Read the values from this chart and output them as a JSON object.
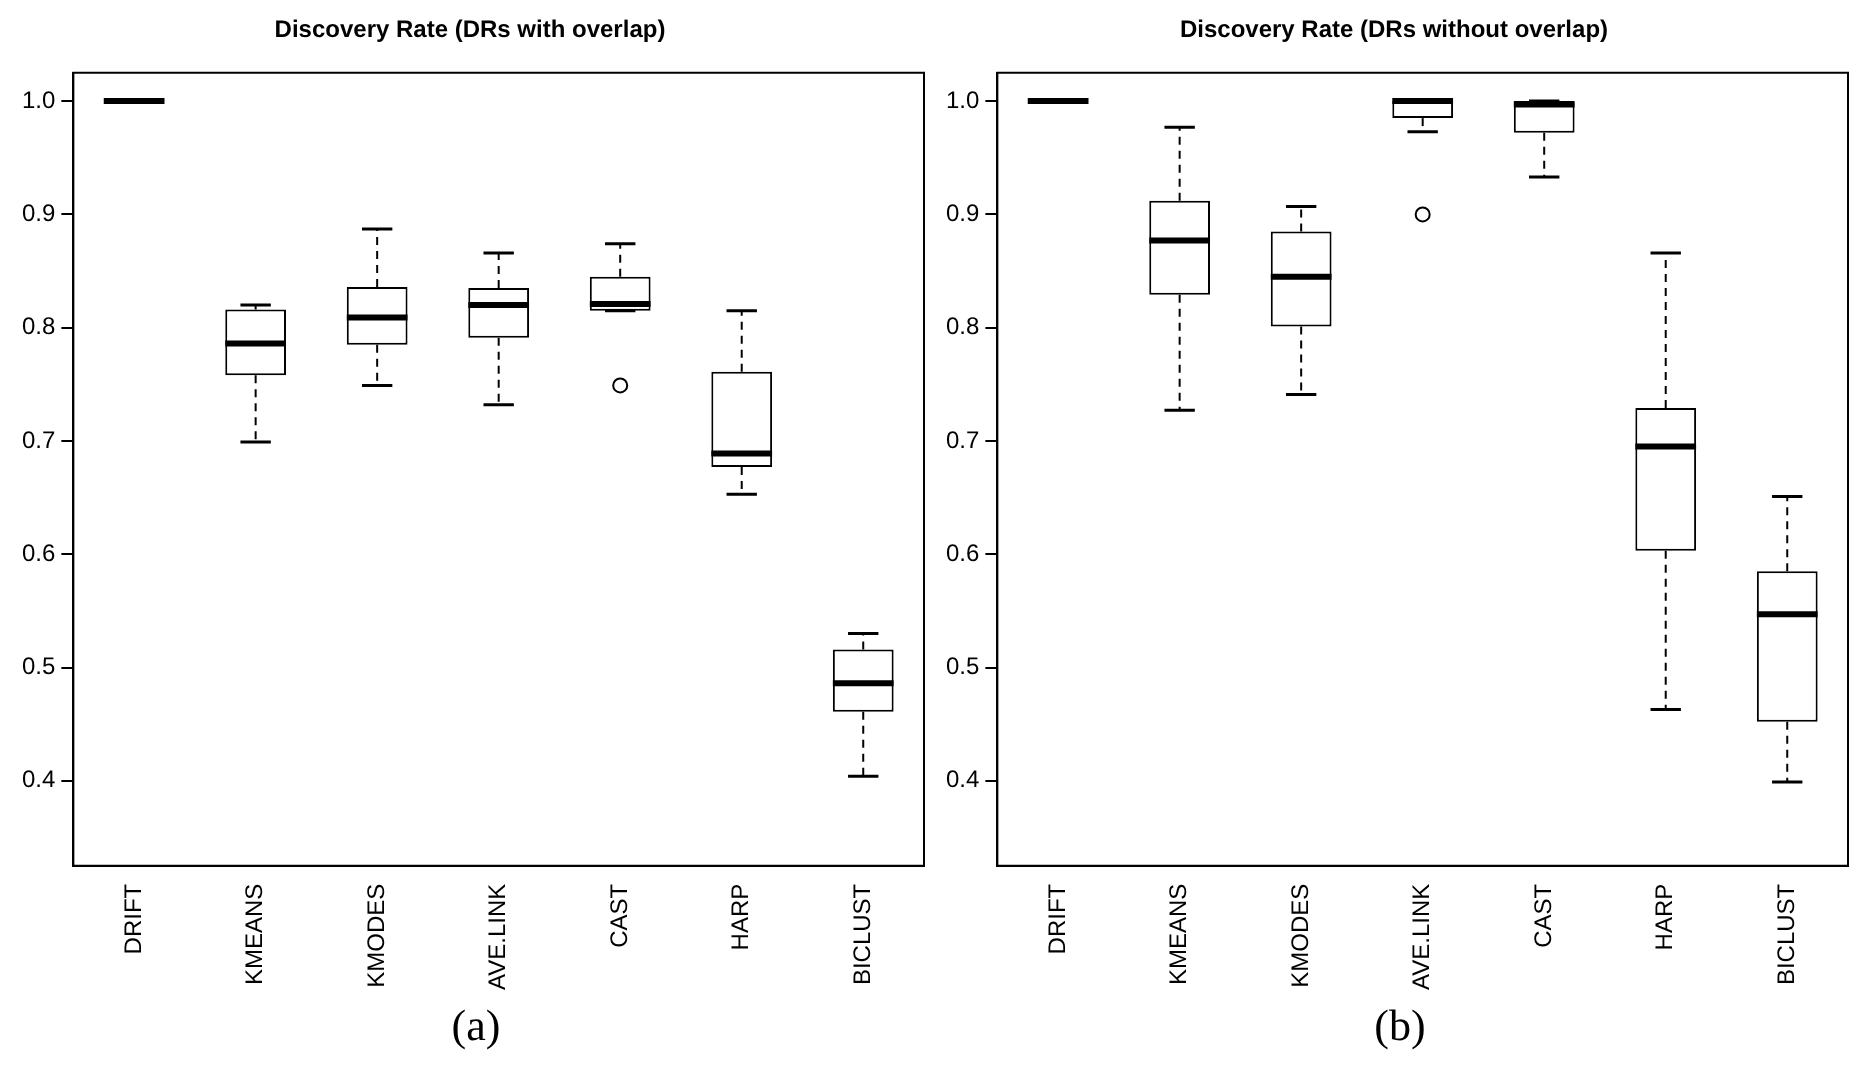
{
  "chart_data": [
    {
      "type": "box",
      "title": "Discovery Rate (DRs with overlap)",
      "categories": [
        "DRIFT",
        "KMEANS",
        "KMODES",
        "AVE.LINK",
        "CAST",
        "HARP",
        "BICLUST"
      ],
      "boxes": [
        {
          "low": 1.0,
          "q1": 1.0,
          "median": 1.0,
          "q3": 1.0,
          "high": 1.0
        },
        {
          "low": 0.699,
          "q1": 0.758,
          "median": 0.786,
          "q3": 0.816,
          "high": 0.82
        },
        {
          "low": 0.749,
          "q1": 0.785,
          "median": 0.809,
          "q3": 0.836,
          "high": 0.887
        },
        {
          "low": 0.732,
          "q1": 0.791,
          "median": 0.82,
          "q3": 0.835,
          "high": 0.866
        },
        {
          "low": 0.815,
          "q1": 0.815,
          "median": 0.821,
          "q3": 0.845,
          "high": 0.874,
          "outliers": [
            0.749
          ]
        },
        {
          "low": 0.653,
          "q1": 0.677,
          "median": 0.689,
          "q3": 0.761,
          "high": 0.815
        },
        {
          "low": 0.404,
          "q1": 0.461,
          "median": 0.486,
          "q3": 0.516,
          "high": 0.53
        }
      ],
      "ylim": [
        0.325,
        1.025
      ],
      "yticks": [
        0.4,
        0.5,
        0.6,
        0.7,
        0.8,
        0.9,
        {
          "value": 1,
          "label": "1.0"
        }
      ],
      "annotations": [
        "(a)"
      ]
    },
    {
      "type": "box",
      "title": "Discovery Rate (DRs without overlap)",
      "categories": [
        "DRIFT",
        "KMEANS",
        "KMODES",
        "AVE.LINK",
        "CAST",
        "HARP",
        "BICLUST"
      ],
      "boxes": [
        {
          "low": 1.0,
          "q1": 1.0,
          "median": 1.0,
          "q3": 1.0,
          "high": 1.0
        },
        {
          "low": 0.727,
          "q1": 0.829,
          "median": 0.877,
          "q3": 0.912,
          "high": 0.977
        },
        {
          "low": 0.741,
          "q1": 0.801,
          "median": 0.845,
          "q3": 0.885,
          "high": 0.907
        },
        {
          "low": 0.973,
          "q1": 0.985,
          "median": 1.0,
          "q3": 1.0,
          "high": 1.0,
          "outliers": [
            0.9
          ]
        },
        {
          "low": 0.933,
          "q1": 0.972,
          "median": 0.997,
          "q3": 1.0,
          "high": 1.0
        },
        {
          "low": 0.463,
          "q1": 0.603,
          "median": 0.695,
          "q3": 0.729,
          "high": 0.866
        },
        {
          "low": 0.399,
          "q1": 0.452,
          "median": 0.547,
          "q3": 0.585,
          "high": 0.651
        }
      ],
      "ylim": [
        0.325,
        1.025
      ],
      "yticks": [
        0.4,
        0.5,
        0.6,
        0.7,
        0.8,
        0.9,
        {
          "value": 1,
          "label": "1.0"
        }
      ],
      "annotations": [
        "(b)"
      ]
    }
  ]
}
